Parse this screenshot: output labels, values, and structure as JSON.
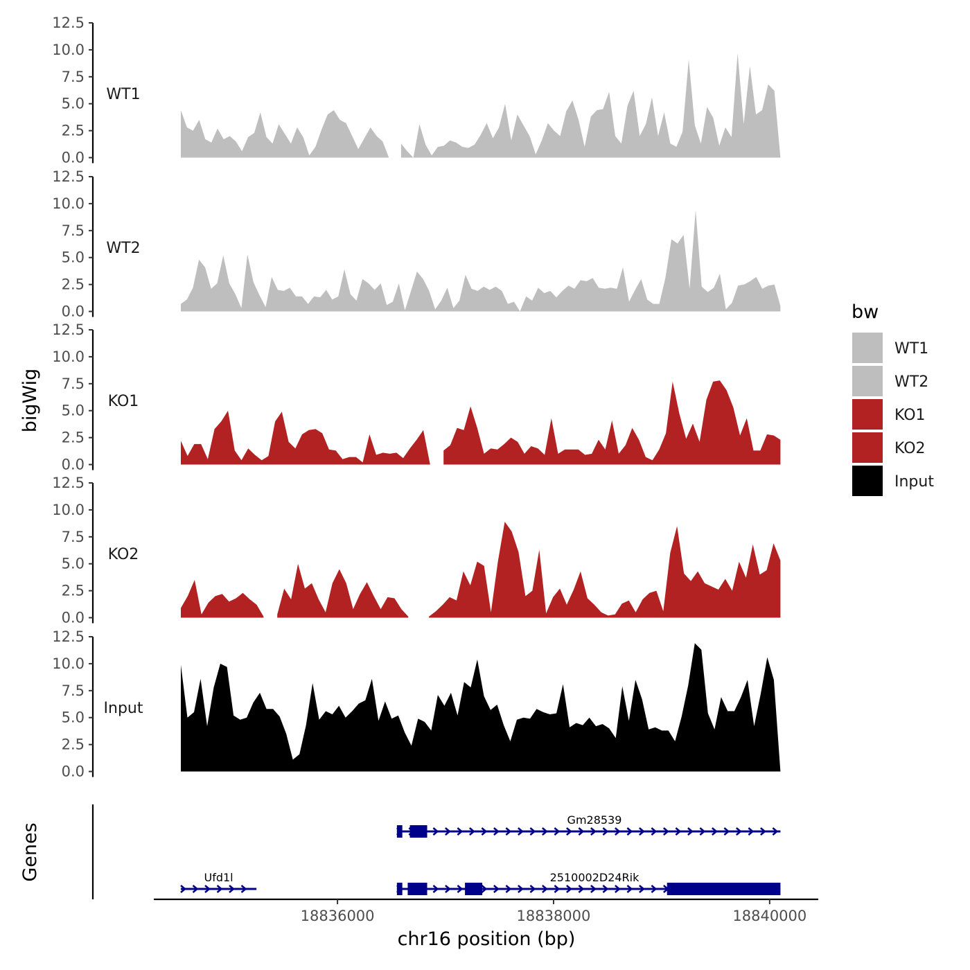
{
  "chart_data": {
    "type": "area",
    "title": "",
    "ylabel": "bigWig",
    "xlabel": "chr16 position (bp)",
    "genes_label": "Genes",
    "xlim": [
      18834300,
      18840450
    ],
    "ylim": [
      0,
      12.5
    ],
    "x_start": 18834550,
    "x_end": 18840100,
    "y_ticks": [
      "0.0",
      "2.5",
      "5.0",
      "7.5",
      "10.0",
      "12.5"
    ],
    "y_tick_values": [
      0,
      2.5,
      5,
      7.5,
      10,
      12.5
    ],
    "x_ticks": [
      "18836000",
      "18838000",
      "18840000"
    ],
    "x_tick_values": [
      18836000,
      18838000,
      18840000
    ],
    "legend": {
      "title": "bw",
      "entries": [
        {
          "label": "WT1",
          "color": "#BEBEBE"
        },
        {
          "label": "WT2",
          "color": "#BEBEBE"
        },
        {
          "label": "KO1",
          "color": "#B22222"
        },
        {
          "label": "KO2",
          "color": "#B22222"
        },
        {
          "label": "Input",
          "color": "#000000"
        }
      ]
    },
    "series": [
      {
        "name": "WT1",
        "color": "#BEBEBE",
        "values": [
          4.4,
          2.8,
          2.5,
          3.5,
          1.7,
          1.4,
          2.7,
          1.7,
          2.0,
          1.5,
          0.6,
          1.9,
          2.3,
          4.2,
          1.9,
          1.3,
          3.1,
          2.2,
          1.3,
          2.8,
          1.9,
          0.2,
          1.0,
          2.6,
          4.0,
          4.4,
          3.5,
          3.2,
          2.0,
          0.8,
          1.8,
          2.8,
          2.0,
          1.5,
          0,
          null,
          1.3,
          0.6,
          0,
          3.1,
          1.2,
          0.2,
          1.0,
          1.1,
          1.6,
          1.4,
          1.0,
          0.9,
          1.2,
          2.1,
          3.2,
          1.8,
          2.8,
          5.0,
          1.6,
          4.0,
          3.0,
          2.0,
          0.3,
          1.6,
          3.2,
          2.5,
          2.0,
          4.3,
          5.3,
          3.5,
          1.0,
          3.8,
          4.4,
          4.5,
          6.1,
          2.0,
          1.3,
          4.8,
          6.2,
          2.0,
          3.1,
          5.6,
          2.0,
          4.2,
          1.3,
          1.0,
          2.4,
          9.1,
          3.0,
          1.3,
          4.7,
          3.7,
          1.1,
          2.8,
          1.9,
          9.7,
          3.1,
          8.5,
          4.0,
          4.4,
          6.8,
          6.2,
          0
        ]
      },
      {
        "name": "WT2",
        "color": "#BEBEBE",
        "values": [
          0.7,
          1.1,
          2.2,
          4.8,
          4.1,
          2.1,
          2.6,
          5.2,
          2.6,
          1.6,
          0.3,
          5.3,
          2.7,
          1.5,
          0.4,
          3.2,
          2.0,
          1.9,
          2.2,
          1.4,
          1.4,
          0.7,
          1.4,
          1.3,
          2.0,
          1.1,
          1.4,
          3.9,
          1.6,
          1.0,
          3.0,
          2.6,
          2.0,
          2.6,
          0.6,
          0.9,
          2.6,
          0.1,
          1.9,
          3.7,
          3.0,
          1.9,
          0.2,
          1.0,
          2.2,
          0.3,
          1.0,
          3.4,
          2.1,
          1.9,
          2.3,
          2.0,
          2.3,
          1.9,
          0.7,
          0.9,
          0,
          1.4,
          1.0,
          2.2,
          1.7,
          1.9,
          1.3,
          1.9,
          2.4,
          2.1,
          2.9,
          2.8,
          3.1,
          2.2,
          2.1,
          2.2,
          2.1,
          4.1,
          0.9,
          2.0,
          3.0,
          1.1,
          0.7,
          0.7,
          3.1,
          6.7,
          6.3,
          7.1,
          2.1,
          9.4,
          2.3,
          1.8,
          2.2,
          3.5,
          0.2,
          0.8,
          2.4,
          2.5,
          2.8,
          3.2,
          2.1,
          2.4,
          2.5,
          0.5
        ]
      },
      {
        "name": "KO1",
        "color": "#B22222",
        "values": [
          2.2,
          0.8,
          1.9,
          1.9,
          0.5,
          3.3,
          4.0,
          5.0,
          1.3,
          0.4,
          1.5,
          0.9,
          0.4,
          0.8,
          4.0,
          4.9,
          2.1,
          1.5,
          2.8,
          3.2,
          3.3,
          2.9,
          1.4,
          1.3,
          0.5,
          0.7,
          0.7,
          0.2,
          2.8,
          0.9,
          1.1,
          1.0,
          1.1,
          0.6,
          1.5,
          2.3,
          3.2,
          0,
          null,
          1.3,
          1.8,
          3.4,
          3.2,
          5.4,
          3.4,
          1.0,
          1.5,
          1.4,
          1.9,
          2.5,
          2.1,
          1.0,
          1.7,
          1.5,
          0.9,
          4.3,
          1.0,
          1.4,
          1.4,
          1.4,
          0.9,
          1.0,
          2.3,
          1.4,
          4.1,
          1.0,
          1.8,
          3.4,
          2.3,
          0.7,
          0.4,
          1.4,
          2.9,
          7.7,
          4.7,
          2.4,
          3.8,
          2.1,
          6.0,
          7.7,
          7.8,
          6.9,
          5.3,
          2.7,
          4.3,
          1.3,
          1.3,
          2.8,
          2.7,
          2.3
        ]
      },
      {
        "name": "KO2",
        "color": "#B22222",
        "values": [
          0.9,
          2.0,
          3.5,
          0.3,
          1.4,
          2.0,
          2.2,
          1.5,
          1.8,
          2.3,
          1.7,
          1.2,
          0.1,
          null,
          0.3,
          2.7,
          1.7,
          5.0,
          2.7,
          3.2,
          1.7,
          0.5,
          3.2,
          4.5,
          3.2,
          0.8,
          2.2,
          3.3,
          2.0,
          0.8,
          1.9,
          1.8,
          0.8,
          0.1,
          null,
          null,
          0.1,
          0.6,
          1.2,
          1.9,
          1.6,
          4.3,
          3.0,
          5.2,
          4.8,
          0.5,
          5.2,
          8.9,
          8.0,
          6.1,
          2.0,
          2.5,
          6.3,
          0.4,
          1.9,
          2.7,
          1.2,
          2.6,
          4.3,
          1.8,
          1.2,
          0.5,
          0.2,
          0.3,
          1.3,
          1.6,
          0.5,
          1.7,
          2.3,
          2.5,
          0.6,
          6.0,
          8.5,
          4.1,
          3.4,
          4.3,
          3.2,
          2.9,
          2.6,
          3.6,
          2.5,
          5.2,
          3.7,
          6.8,
          4.0,
          4.4,
          6.9,
          5.3
        ]
      },
      {
        "name": "Input",
        "color": "#000000",
        "values": [
          9.9,
          5.0,
          5.5,
          8.6,
          4.2,
          7.8,
          10.0,
          9.7,
          5.2,
          4.8,
          5.0,
          6.4,
          7.3,
          5.8,
          5.8,
          5.1,
          3.5,
          1.1,
          1.6,
          4.3,
          8.2,
          4.8,
          5.6,
          5.3,
          6.1,
          5.0,
          5.6,
          6.3,
          6.6,
          8.6,
          4.7,
          6.5,
          4.9,
          5.2,
          3.6,
          2.4,
          4.9,
          4.6,
          3.8,
          7.1,
          6.1,
          7.3,
          5.2,
          8.3,
          7.8,
          10.4,
          7.0,
          5.7,
          6.2,
          4.3,
          2.8,
          4.8,
          5.0,
          4.9,
          5.8,
          5.5,
          5.3,
          5.4,
          8.1,
          4.1,
          4.5,
          4.3,
          5.0,
          4.2,
          4.4,
          4.0,
          3.1,
          7.9,
          4.7,
          8.5,
          6.7,
          3.9,
          4.1,
          3.8,
          3.8,
          2.8,
          5.1,
          8.0,
          11.9,
          11.3,
          5.4,
          3.9,
          6.9,
          5.6,
          5.6,
          6.9,
          8.5,
          4.2,
          7.2,
          10.6,
          8.5,
          0
        ]
      }
    ],
    "genes": [
      {
        "name": "Gm28539",
        "start": 18836550,
        "end": 18840100,
        "exons": [
          [
            18836550,
            18836600
          ],
          [
            18836670,
            18836830
          ]
        ]
      },
      {
        "name": "2510002D24Rik",
        "start": 18836550,
        "end": 18840100,
        "exons": [
          [
            18836550,
            18836600
          ],
          [
            18836650,
            18836830
          ],
          [
            18837180,
            18837340
          ],
          [
            18839050,
            18840100
          ]
        ]
      },
      {
        "name": "Ufd1l",
        "start": 18834550,
        "end": 18835250,
        "exons": []
      }
    ]
  }
}
